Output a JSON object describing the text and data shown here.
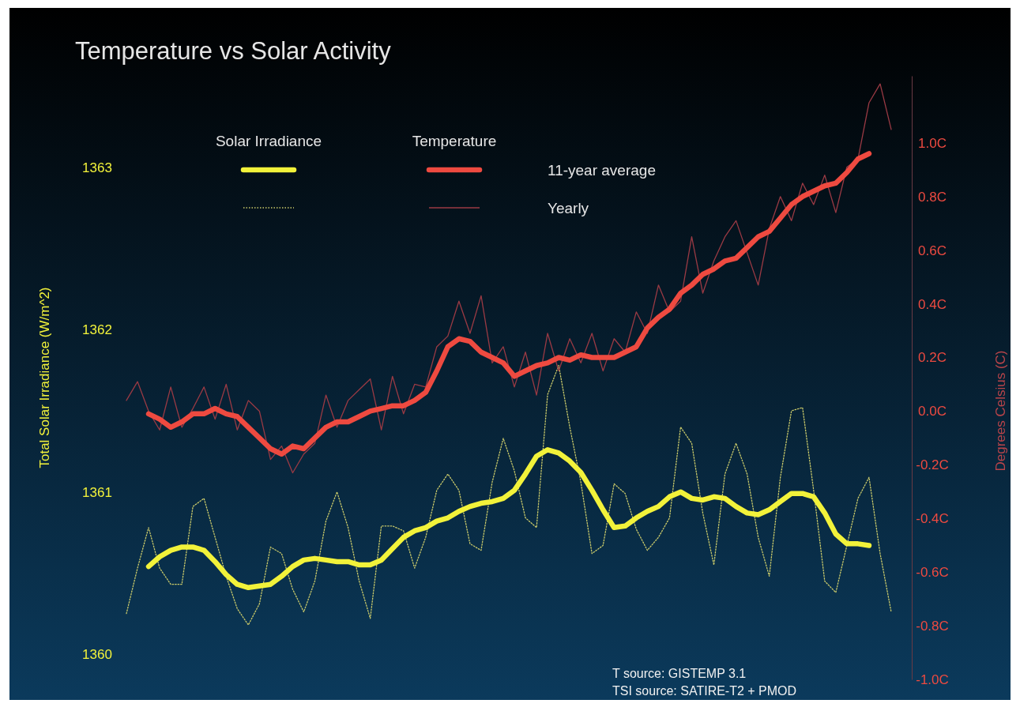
{
  "chart_data": {
    "type": "line",
    "title": "Temperature vs Solar Activity",
    "ylabel": "Total Solar Irradiance (W/m^2)",
    "y2label": "Degrees Celsius (C)",
    "categories": [
      null,
      null,
      null,
      null,
      null,
      null,
      null,
      null,
      null,
      null,
      null,
      null,
      null,
      null,
      null,
      null,
      null,
      null,
      null,
      null,
      null,
      null,
      null,
      null,
      null,
      null,
      null,
      null,
      null,
      null,
      null,
      null,
      null,
      null,
      null,
      null,
      null,
      null,
      null,
      null,
      null,
      null,
      null,
      null,
      null,
      null,
      null,
      null,
      null,
      null,
      null,
      null,
      null,
      null,
      null,
      null,
      null,
      null,
      null,
      null,
      null,
      null,
      null,
      null,
      null,
      null,
      null,
      null,
      null,
      null
    ],
    "ylim": [
      1360,
      1363
    ],
    "yticks": [
      1360,
      1361,
      1362,
      1363
    ],
    "y2lim": [
      -1.0,
      1.25
    ],
    "y2ticks": [
      {
        "value": -1.0,
        "label": "-1.0C"
      },
      {
        "value": -0.8,
        "label": "-0.8C"
      },
      {
        "value": -0.6,
        "label": "-0.6C"
      },
      {
        "value": -0.4,
        "label": "-0.4C"
      },
      {
        "value": -0.2,
        "label": "-0.2C"
      },
      {
        "value": 0,
        "label": "0.0C"
      },
      {
        "value": 0.2,
        "label": "0.2C"
      },
      {
        "value": 0.4,
        "label": "0.4C"
      },
      {
        "value": 0.6,
        "label": "0.6C"
      },
      {
        "value": 0.8,
        "label": "0.8C"
      },
      {
        "value": 1.0,
        "label": "1.0C"
      }
    ],
    "series": [
      {
        "color": "#f2f23a",
        "line_style": "solid",
        "values": [
          null,
          null,
          1360.54,
          1360.6,
          1360.64,
          1360.66,
          1360.66,
          1360.64,
          1360.57,
          1360.49,
          1360.43,
          1360.41,
          1360.42,
          1360.43,
          1360.48,
          1360.54,
          1360.58,
          1360.59,
          1360.58,
          1360.57,
          1360.57,
          1360.55,
          1360.55,
          1360.58,
          1360.65,
          1360.72,
          1360.76,
          1360.78,
          1360.82,
          1360.84,
          1360.88,
          1360.91,
          1360.93,
          1360.94,
          1360.96,
          1361.01,
          1361.11,
          1361.22,
          1361.26,
          1361.24,
          1361.19,
          1361.12,
          1361.01,
          1360.89,
          1360.78,
          1360.79,
          1360.84,
          1360.88,
          1360.91,
          1360.97,
          1361.0,
          1360.96,
          1360.95,
          1360.97,
          1360.96,
          1360.91,
          1360.87,
          1360.86,
          1360.89,
          1360.94,
          1360.99,
          1360.99,
          1360.97,
          1360.87,
          1360.74,
          1360.68,
          1360.68,
          1360.67,
          null,
          null
        ]
      },
      {
        "color": "#c9c96a",
        "line_style": "dotted",
        "values": [
          1360.25,
          1360.53,
          1360.78,
          1360.53,
          1360.43,
          1360.43,
          1360.91,
          1360.96,
          1360.72,
          1360.48,
          1360.28,
          1360.18,
          1360.31,
          1360.66,
          1360.62,
          1360.4,
          1360.26,
          1360.45,
          1360.82,
          1361.0,
          1360.78,
          1360.45,
          1360.22,
          1360.79,
          1360.79,
          1360.76,
          1360.53,
          1360.72,
          1361.01,
          1361.11,
          1361.01,
          1360.68,
          1360.64,
          1361.06,
          1361.33,
          1361.13,
          1360.84,
          1360.78,
          1361.6,
          1361.78,
          1361.4,
          1361.06,
          1360.62,
          1360.67,
          1361.05,
          1360.99,
          1360.77,
          1360.64,
          1360.72,
          1360.84,
          1361.4,
          1361.3,
          1360.87,
          1360.55,
          1361.11,
          1361.3,
          1361.11,
          1360.72,
          1360.48,
          1361.09,
          1361.5,
          1361.52,
          1361.01,
          1360.45,
          1360.38,
          1360.67,
          1360.96,
          1361.09,
          1360.62,
          1360.26
        ]
      },
      {
        "color": "#ee4a40",
        "line_style": "solid",
        "axis": "y2",
        "values": [
          null,
          null,
          -0.01,
          -0.03,
          -0.06,
          -0.04,
          -0.01,
          -0.01,
          0.01,
          -0.01,
          -0.02,
          -0.06,
          -0.1,
          -0.14,
          -0.16,
          -0.13,
          -0.14,
          -0.1,
          -0.06,
          -0.04,
          -0.04,
          -0.02,
          0.0,
          0.01,
          0.02,
          0.02,
          0.04,
          0.07,
          0.15,
          0.24,
          0.27,
          0.26,
          0.22,
          0.2,
          0.18,
          0.13,
          0.15,
          0.17,
          0.18,
          0.2,
          0.19,
          0.21,
          0.2,
          0.2,
          0.2,
          0.22,
          0.24,
          0.31,
          0.35,
          0.38,
          0.44,
          0.47,
          0.51,
          0.53,
          0.56,
          0.57,
          0.61,
          0.65,
          0.67,
          0.72,
          0.77,
          0.8,
          0.82,
          0.84,
          0.85,
          0.89,
          0.94,
          0.96,
          null,
          null
        ]
      },
      {
        "color": "#9a3a44",
        "line_style": "solid",
        "axis": "y2",
        "values": [
          0.04,
          0.11,
          0.0,
          -0.07,
          0.09,
          -0.06,
          0.01,
          0.09,
          -0.03,
          0.1,
          -0.07,
          0.04,
          0.0,
          -0.18,
          -0.13,
          -0.23,
          -0.16,
          -0.12,
          0.06,
          -0.06,
          0.04,
          0.08,
          0.12,
          -0.07,
          0.13,
          -0.01,
          0.1,
          0.09,
          0.24,
          0.28,
          0.41,
          0.29,
          0.43,
          0.18,
          0.24,
          0.09,
          0.22,
          0.06,
          0.29,
          0.15,
          0.27,
          0.18,
          0.29,
          0.15,
          0.27,
          0.22,
          0.37,
          0.29,
          0.47,
          0.37,
          0.41,
          0.65,
          0.44,
          0.56,
          0.65,
          0.71,
          0.59,
          0.47,
          0.68,
          0.8,
          0.71,
          0.85,
          0.77,
          0.88,
          0.74,
          0.91,
          0.94,
          1.15,
          1.22,
          1.05
        ]
      }
    ],
    "annotations": [
      "Solar Irradiance",
      "Temperature",
      "11-year average",
      "Yearly",
      "T source: GISTEMP 3.1",
      "TSI source: SATIRE-T2 + PMOD"
    ]
  }
}
